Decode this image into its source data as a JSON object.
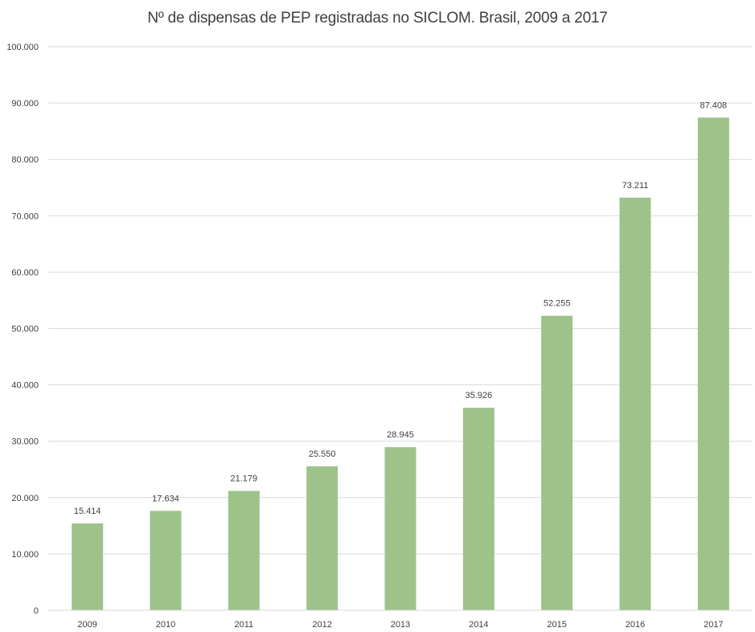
{
  "chart_data": {
    "type": "bar",
    "title": "Nº de dispensas de PEP registradas no SICLOM. Brasil, 2009 a 2017",
    "xlabel": "",
    "ylabel": "",
    "categories": [
      "2009",
      "2010",
      "2011",
      "2012",
      "2013",
      "2014",
      "2015",
      "2016",
      "2017"
    ],
    "values": [
      15414,
      17634,
      21179,
      25550,
      28945,
      35926,
      52255,
      73211,
      87408
    ],
    "value_labels": [
      "15.414",
      "17.634",
      "21.179",
      "25.550",
      "28.945",
      "35.926",
      "52.255",
      "73.211",
      "87.408"
    ],
    "ylim": [
      0,
      100000
    ],
    "y_ticks": [
      0,
      10000,
      20000,
      30000,
      40000,
      50000,
      60000,
      70000,
      80000,
      90000,
      100000
    ],
    "y_tick_labels": [
      "0",
      "10.000",
      "20.000",
      "30.000",
      "40.000",
      "50.000",
      "60.000",
      "70.000",
      "80.000",
      "90.000",
      "100.000"
    ],
    "grid": true,
    "legend": "none",
    "bar_color": "#9dc38a",
    "grid_color": "#d9d9d9"
  }
}
